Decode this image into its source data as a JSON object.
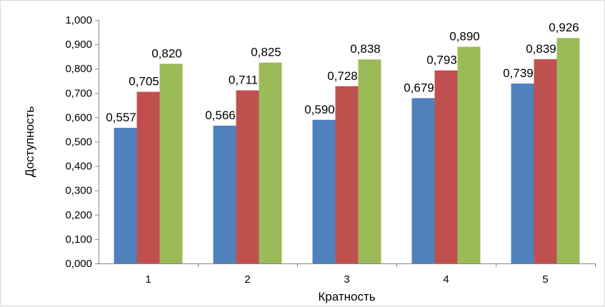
{
  "chart_data": {
    "type": "bar",
    "title": "",
    "xlabel": "Кратность",
    "ylabel": "Доступность",
    "categories": [
      "1",
      "2",
      "3",
      "4",
      "5"
    ],
    "series": [
      {
        "color": "#4f81bd",
        "values": [
          0.557,
          0.566,
          0.59,
          0.679,
          0.739
        ],
        "labels": [
          "0,557",
          "0,566",
          "0,590",
          "0,679",
          "0,739"
        ]
      },
      {
        "color": "#c0504d",
        "values": [
          0.705,
          0.711,
          0.728,
          0.793,
          0.839
        ],
        "labels": [
          "0,705",
          "0,711",
          "0,728",
          "0,793",
          "0,839"
        ]
      },
      {
        "color": "#9bbb59",
        "values": [
          0.82,
          0.825,
          0.838,
          0.89,
          0.926
        ],
        "labels": [
          "0,820",
          "0,825",
          "0,838",
          "0,890",
          "0,926"
        ]
      }
    ],
    "ylim": [
      0,
      1
    ],
    "yticks": [
      "0,000",
      "0,100",
      "0,200",
      "0,300",
      "0,400",
      "0,500",
      "0,600",
      "0,700",
      "0,800",
      "0,900",
      "1,000"
    ],
    "grid": false,
    "legend": "none"
  }
}
